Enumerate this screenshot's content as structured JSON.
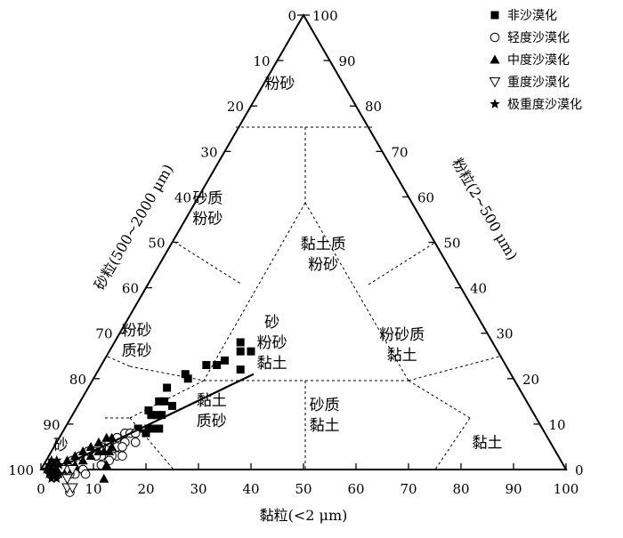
{
  "chart_data": {
    "type": "scatter",
    "chart_kind": "ternary",
    "title": "",
    "axes": {
      "clay": {
        "label": "黏粒(<2 μm)",
        "ticks": [
          "0",
          "10",
          "20",
          "30",
          "40",
          "50",
          "60",
          "70",
          "80",
          "90",
          "100"
        ]
      },
      "silt": {
        "label": "粉粒(2~500 μm)",
        "ticks": [
          "0",
          "10",
          "20",
          "30",
          "40",
          "50",
          "60",
          "70",
          "80",
          "90",
          "100"
        ]
      },
      "sand": {
        "label": "砂粒(500~2000 μm)",
        "ticks": [
          "0",
          "10",
          "20",
          "30",
          "40",
          "50",
          "60",
          "70",
          "80",
          "90",
          "100"
        ]
      }
    },
    "regions": [
      {
        "id": "silt",
        "lines": [
          "粉砂"
        ],
        "at": {
          "clay": 3,
          "sand": 12
        }
      },
      {
        "id": "sandy-silt",
        "lines": [
          "砂质",
          "粉砂"
        ],
        "at": {
          "clay": 3,
          "sand": 39.5
        }
      },
      {
        "id": "clayey-silt",
        "lines": [
          "黏土质",
          "粉砂"
        ],
        "at": {
          "clay": 30,
          "sand": 22.5
        }
      },
      {
        "id": "sand-silt-clay",
        "lines": [
          "砂",
          "粉砂",
          "黏土"
        ],
        "at": {
          "clay": 30,
          "sand": 42
        }
      },
      {
        "id": "silty-sand",
        "lines": [
          "粉砂",
          "质砂"
        ],
        "at": {
          "clay": 4,
          "sand": 67.5
        }
      },
      {
        "id": "silty-clay",
        "lines": [
          "粉砂质",
          "黏土"
        ],
        "at": {
          "clay": 55,
          "sand": 17.5
        }
      },
      {
        "id": "sand",
        "lines": [
          "砂"
        ],
        "at": {
          "clay": 1,
          "sand": 93.5
        }
      },
      {
        "id": "clayey-sand",
        "lines": [
          "黏土",
          "质砂"
        ],
        "at": {
          "clay": 26,
          "sand": 61
        }
      },
      {
        "id": "sandy-clay",
        "lines": [
          "砂质",
          "黏土"
        ],
        "at": {
          "clay": 48,
          "sand": 40
        }
      },
      {
        "id": "clay",
        "lines": [
          "黏土"
        ],
        "at": {
          "clay": 82,
          "sand": 12
        }
      }
    ],
    "series": [
      {
        "name": "非沙漠化",
        "marker": "square",
        "points": [
          [
            24,
            48
          ],
          [
            25,
            49
          ],
          [
            27,
            47
          ],
          [
            27,
            51
          ],
          [
            23,
            53
          ],
          [
            22,
            55
          ],
          [
            20,
            57
          ],
          [
            17,
            62
          ],
          [
            18,
            62
          ],
          [
            15,
            67
          ],
          [
            18,
            68
          ],
          [
            16,
            69
          ],
          [
            17,
            71
          ],
          [
            15,
            70
          ],
          [
            16,
            72
          ],
          [
            14,
            73
          ],
          [
            17,
            74
          ],
          [
            18,
            73
          ],
          [
            16,
            76
          ],
          [
            15,
            73
          ],
          [
            14,
            77
          ],
          [
            16,
            75
          ]
        ]
      },
      {
        "name": "轻度沙漠化",
        "marker": "circle",
        "points": [
          [
            11,
            82
          ],
          [
            13,
            81
          ],
          [
            12,
            83
          ],
          [
            10,
            84
          ],
          [
            13,
            84
          ],
          [
            11,
            86
          ],
          [
            12,
            85
          ],
          [
            14,
            83
          ],
          [
            9,
            86
          ],
          [
            10,
            87
          ],
          [
            12,
            86
          ],
          [
            8,
            88
          ],
          [
            7,
            89
          ],
          [
            9,
            88
          ],
          [
            11,
            88
          ],
          [
            6,
            91
          ],
          [
            8,
            92
          ],
          [
            5,
            93
          ],
          [
            7,
            94
          ],
          [
            9,
            92
          ],
          [
            4,
            96
          ],
          [
            6,
            95
          ],
          [
            8,
            97
          ],
          [
            12,
            80
          ],
          [
            13,
            79
          ],
          [
            15,
            79
          ],
          [
            14,
            78
          ],
          [
            13,
            82
          ]
        ]
      },
      {
        "name": "中度沙漠化",
        "marker": "triangle-up",
        "points": [
          [
            10,
            83
          ],
          [
            9,
            84
          ],
          [
            11,
            84
          ],
          [
            8,
            86
          ],
          [
            10,
            86
          ],
          [
            7,
            88
          ],
          [
            9,
            87
          ],
          [
            8,
            89
          ],
          [
            6,
            90
          ],
          [
            7,
            91
          ],
          [
            5,
            92
          ],
          [
            6,
            93
          ],
          [
            4,
            94
          ],
          [
            5,
            95
          ],
          [
            3,
            97
          ],
          [
            11,
            85
          ],
          [
            13,
            89
          ],
          [
            12,
            87
          ]
        ]
      },
      {
        "name": "重度沙漠化",
        "marker": "triangle-down",
        "points": [
          [
            5,
            95
          ],
          [
            6,
            96
          ],
          [
            7,
            97
          ],
          [
            4,
            96
          ],
          [
            8,
            96
          ],
          [
            6,
            94
          ]
        ]
      },
      {
        "name": "极重度沙漠化",
        "marker": "star",
        "points": [
          [
            1,
            98
          ],
          [
            2,
            98
          ],
          [
            1,
            99
          ],
          [
            3,
            98
          ],
          [
            2,
            97
          ],
          [
            3,
            99
          ],
          [
            2,
            99
          ],
          [
            4,
            97
          ],
          [
            1,
            97
          ],
          [
            3,
            96
          ],
          [
            2,
            96
          ],
          [
            4,
            98
          ]
        ]
      }
    ],
    "trendline": {
      "from": {
        "clay": 4,
        "sand": 95
      },
      "to": {
        "clay": 30,
        "sand": 49
      }
    },
    "legend": {
      "position": "top-right"
    }
  }
}
